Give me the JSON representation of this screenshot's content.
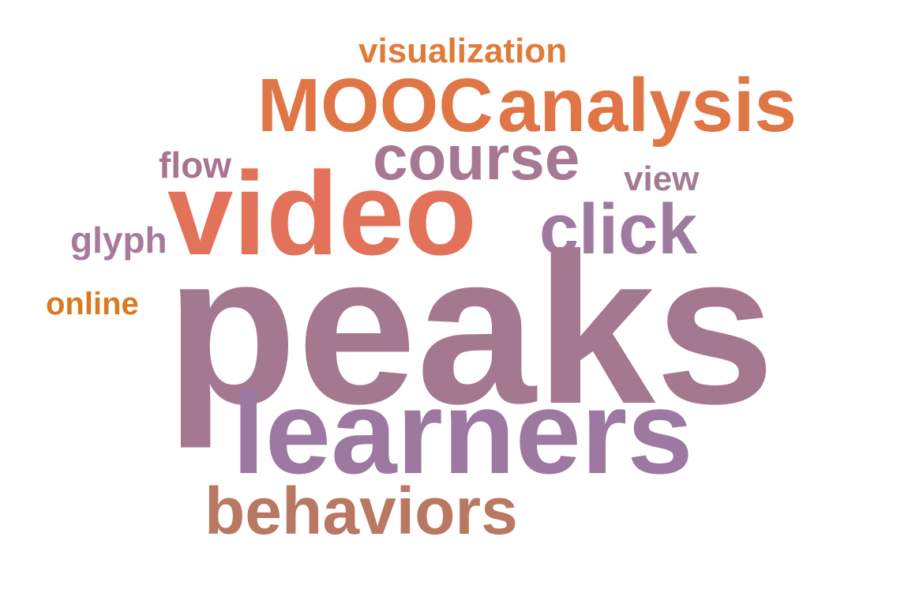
{
  "words": [
    {
      "id": "visualization",
      "text": "visualization",
      "color": "#E07B3A"
    },
    {
      "id": "mooc",
      "text": "MOOC",
      "color": "#E07545"
    },
    {
      "id": "analysis",
      "text": "analysis",
      "color": "#E07545"
    },
    {
      "id": "course",
      "text": "course",
      "color": "#A77891"
    },
    {
      "id": "flow",
      "text": "flow",
      "color": "#A87590"
    },
    {
      "id": "view",
      "text": "view",
      "color": "#A47A95"
    },
    {
      "id": "video",
      "text": "video",
      "color": "#E2725A"
    },
    {
      "id": "click",
      "text": "click",
      "color": "#9F7AA0"
    },
    {
      "id": "glyph",
      "text": "glyph",
      "color": "#A7799A"
    },
    {
      "id": "online",
      "text": "online",
      "color": "#D97A1F"
    },
    {
      "id": "peaks",
      "text": "peaks",
      "color": "#A4788F"
    },
    {
      "id": "learners",
      "text": "learners",
      "color": "#9D79A2"
    },
    {
      "id": "behaviors",
      "text": "behaviors",
      "color": "#B97862"
    }
  ]
}
